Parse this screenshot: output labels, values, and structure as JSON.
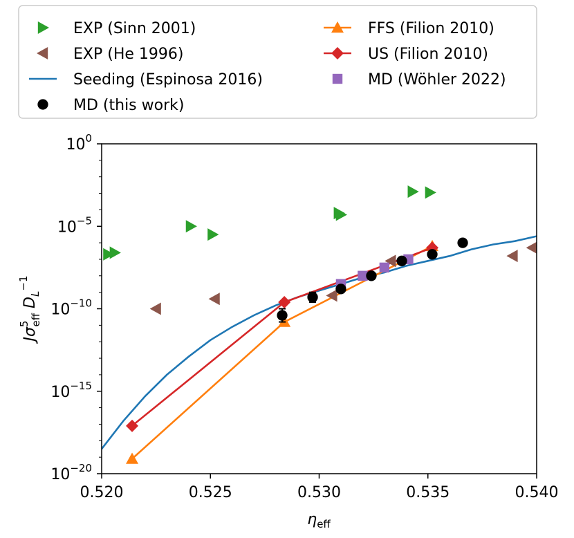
{
  "chart_data": {
    "type": "scatter",
    "xlabel": "η_eff",
    "ylabel": "J σ_eff^5 D_L^-1",
    "xlim": [
      0.52,
      0.54
    ],
    "ylim_log10": [
      -20,
      0
    ],
    "y_scale": "log",
    "grid": false,
    "legend_position": "above plot, two columns",
    "x_ticks": [
      "0.520",
      "0.525",
      "0.530",
      "0.535",
      "0.540"
    ],
    "y_ticks_exponent": [
      "0",
      "−5",
      "−10",
      "−15",
      "−20"
    ],
    "series": [
      {
        "name": "EXP (Sinn 2001)",
        "kind": "marker",
        "marker": "triangle-right",
        "color": "#2ca02c",
        "x": [
          0.5203,
          0.5206,
          0.5241,
          0.5251,
          0.5309,
          0.531,
          0.5343,
          0.5351
        ],
        "log10_y": [
          -6.7,
          -6.6,
          -5.0,
          -5.5,
          -4.2,
          -4.3,
          -2.9,
          -2.95
        ]
      },
      {
        "name": "EXP (He 1996)",
        "kind": "marker",
        "marker": "triangle-left",
        "color": "#8c564b",
        "x": [
          0.5225,
          0.5252,
          0.5306,
          0.5333,
          0.5389,
          0.5398
        ],
        "log10_y": [
          -10.0,
          -9.4,
          -9.2,
          -7.1,
          -6.8,
          -6.3
        ]
      },
      {
        "name": "Seeding (Espinosa 2016)",
        "kind": "line",
        "color": "#1f77b4",
        "x": [
          0.52,
          0.521,
          0.522,
          0.523,
          0.524,
          0.525,
          0.526,
          0.527,
          0.528,
          0.529,
          0.53,
          0.531,
          0.532,
          0.533,
          0.534,
          0.535,
          0.536,
          0.537,
          0.538,
          0.539,
          0.54
        ],
        "log10_y": [
          -18.5,
          -16.8,
          -15.3,
          -14.0,
          -12.9,
          -11.9,
          -11.1,
          -10.4,
          -9.8,
          -9.3,
          -8.9,
          -8.5,
          -8.1,
          -7.8,
          -7.4,
          -7.1,
          -6.8,
          -6.4,
          -6.1,
          -5.9,
          -5.6
        ]
      },
      {
        "name": "MD (this work)",
        "kind": "marker",
        "marker": "circle",
        "color": "#000000",
        "x": [
          0.5283,
          0.5297,
          0.531,
          0.5324,
          0.5338,
          0.5352,
          0.5366
        ],
        "log10_y": [
          -10.4,
          -9.3,
          -8.8,
          -8.0,
          -7.1,
          -6.7,
          -6.0
        ],
        "yerr_log10": [
          0.4,
          0.3,
          0.0,
          0.0,
          0.0,
          0.0,
          0.0
        ]
      },
      {
        "name": "FFS (Filion 2010)",
        "kind": "line-marker",
        "marker": "triangle-up",
        "color": "#ff7f0e",
        "x": [
          0.5214,
          0.5284,
          0.5352
        ],
        "log10_y": [
          -19.1,
          -10.8,
          -6.2
        ]
      },
      {
        "name": "US (Filion 2010)",
        "kind": "line-marker",
        "marker": "diamond",
        "color": "#d62728",
        "x": [
          0.5214,
          0.5284,
          0.5352
        ],
        "log10_y": [
          -17.1,
          -9.6,
          -6.3
        ]
      },
      {
        "name": "MD (Wöhler 2022)",
        "kind": "marker",
        "marker": "square",
        "color": "#9467bd",
        "x": [
          0.531,
          0.532,
          0.533,
          0.5341
        ],
        "log10_y": [
          -8.5,
          -8.0,
          -7.5,
          -7.0
        ]
      }
    ]
  },
  "legend": {
    "left": [
      {
        "label": "EXP (Sinn 2001)",
        "marker": "triangle-right",
        "color": "#2ca02c"
      },
      {
        "label": "EXP (He 1996)",
        "marker": "triangle-left",
        "color": "#8c564b"
      },
      {
        "label": "Seeding (Espinosa 2016)",
        "marker": "line",
        "color": "#1f77b4"
      },
      {
        "label": "MD (this work)",
        "marker": "circle",
        "color": "#000000"
      }
    ],
    "right": [
      {
        "label": "FFS (Filion 2010)",
        "marker": "line-triangle-up",
        "color": "#ff7f0e"
      },
      {
        "label": "US (Filion 2010)",
        "marker": "line-diamond",
        "color": "#d62728"
      },
      {
        "label": "MD (Wöhler 2022)",
        "marker": "square",
        "color": "#9467bd"
      }
    ]
  }
}
